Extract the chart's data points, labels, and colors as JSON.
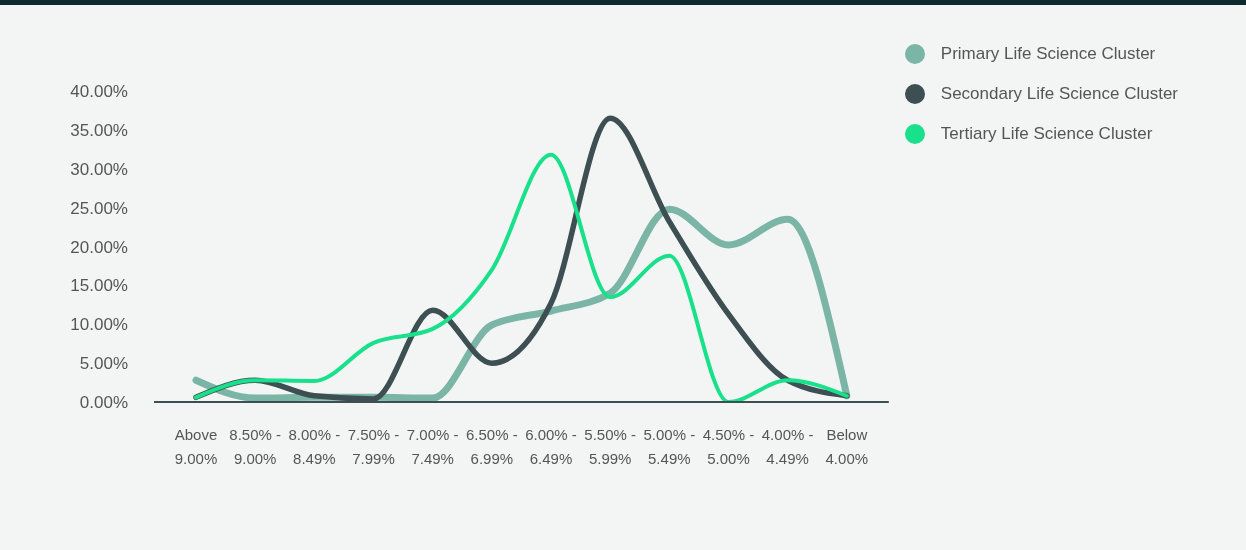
{
  "chart_data": {
    "type": "line",
    "categories": [
      "Above 9.00%",
      "8.50% - 9.00%",
      "8.00% - 8.49%",
      "7.50% - 7.99%",
      "7.00% - 7.49%",
      "6.50% - 6.99%",
      "6.00% - 6.49%",
      "5.50% - 5.99%",
      "5.00% - 5.49%",
      "4.50% - 5.00%",
      "4.00% - 4.49%",
      "Below 4.00%"
    ],
    "series": [
      {
        "name": "Primary Life Science Cluster",
        "color": "#7ab5a5",
        "values": [
          2.8,
          0.5,
          0.6,
          0.6,
          0.5,
          9.9,
          11.7,
          14.0,
          24.8,
          20.2,
          23.5,
          0.8
        ]
      },
      {
        "name": "Secondary Life Science Cluster",
        "color": "#3d4f52",
        "values": [
          0.6,
          2.8,
          0.8,
          0.4,
          11.8,
          5.0,
          12.7,
          36.5,
          23.2,
          11.3,
          2.8,
          0.8
        ]
      },
      {
        "name": "Tertiary Life Science Cluster",
        "color": "#19e08a",
        "values": [
          0.6,
          2.8,
          2.7,
          7.6,
          9.4,
          17.0,
          31.8,
          13.5,
          18.8,
          0.0,
          2.8,
          0.8
        ]
      }
    ],
    "ylim": [
      0,
      40
    ],
    "yticks": [
      {
        "value": 0,
        "label": "0.00%"
      },
      {
        "value": 5,
        "label": "5.00%"
      },
      {
        "value": 10,
        "label": "10.00%"
      },
      {
        "value": 15,
        "label": "15.00%"
      },
      {
        "value": 20,
        "label": "20.00%"
      },
      {
        "value": 25,
        "label": "25.00%"
      },
      {
        "value": 30,
        "label": "30.00%"
      },
      {
        "value": 35,
        "label": "35.00%"
      },
      {
        "value": 40,
        "label": "40.00%"
      }
    ],
    "grid": false,
    "legend": "top right",
    "marker": "none",
    "line_style": "solid"
  }
}
